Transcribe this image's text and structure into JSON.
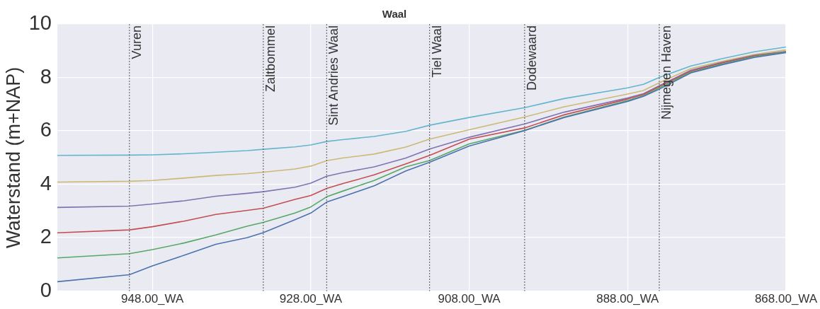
{
  "chart_data": {
    "type": "line",
    "title": "Waal",
    "ylabel": "Waterstand (m+NAP)",
    "x": [
      960,
      950.9,
      948,
      944,
      940,
      936,
      934,
      930,
      928,
      926,
      924,
      920,
      916,
      913,
      908,
      901,
      896,
      888,
      886,
      884,
      880,
      876,
      872,
      868
    ],
    "xlim": [
      960,
      868
    ],
    "xticks": [
      {
        "value": 948,
        "label": "948.00_WA"
      },
      {
        "value": 928,
        "label": "928.00_WA"
      },
      {
        "value": 908,
        "label": "908.00_WA"
      },
      {
        "value": 888,
        "label": "888.00_WA"
      },
      {
        "value": 868,
        "label": "868.00_WA"
      }
    ],
    "ylim": [
      0,
      10
    ],
    "yticks": [
      0,
      2,
      4,
      6,
      8,
      10
    ],
    "grid": true,
    "legend": false,
    "marker": "none",
    "line_style": "solid",
    "series": [
      {
        "color": "#4c72b0",
        "values": [
          0.35,
          0.61,
          0.94,
          1.34,
          1.75,
          2.0,
          2.19,
          2.67,
          2.92,
          3.33,
          3.53,
          3.94,
          4.5,
          4.82,
          5.43,
          6.01,
          6.5,
          7.1,
          7.29,
          7.56,
          8.17,
          8.48,
          8.75,
          8.93
        ]
      },
      {
        "color": "#55a868",
        "values": [
          1.24,
          1.4,
          1.55,
          1.8,
          2.1,
          2.43,
          2.57,
          2.92,
          3.15,
          3.53,
          3.74,
          4.14,
          4.65,
          4.89,
          5.51,
          6.02,
          6.52,
          7.13,
          7.31,
          7.61,
          8.2,
          8.51,
          8.78,
          8.95
        ]
      },
      {
        "color": "#c44e52",
        "values": [
          2.18,
          2.29,
          2.41,
          2.62,
          2.87,
          3.02,
          3.1,
          3.43,
          3.58,
          3.84,
          4.02,
          4.35,
          4.76,
          5.08,
          5.69,
          6.11,
          6.6,
          7.19,
          7.36,
          7.66,
          8.24,
          8.55,
          8.81,
          8.96
        ]
      },
      {
        "color": "#8172b2",
        "values": [
          3.13,
          3.18,
          3.26,
          3.38,
          3.55,
          3.66,
          3.72,
          3.89,
          4.04,
          4.3,
          4.43,
          4.65,
          4.98,
          5.32,
          5.76,
          6.26,
          6.7,
          7.23,
          7.39,
          7.69,
          8.27,
          8.57,
          8.83,
          8.97
        ]
      },
      {
        "color": "#ccb974",
        "values": [
          4.08,
          4.11,
          4.14,
          4.23,
          4.33,
          4.4,
          4.45,
          4.57,
          4.68,
          4.88,
          4.98,
          5.13,
          5.39,
          5.69,
          6.04,
          6.52,
          6.9,
          7.38,
          7.51,
          7.8,
          8.33,
          8.61,
          8.86,
          9.03
        ]
      },
      {
        "color": "#64b5cd",
        "values": [
          5.08,
          5.09,
          5.1,
          5.14,
          5.2,
          5.26,
          5.31,
          5.4,
          5.47,
          5.6,
          5.67,
          5.79,
          5.98,
          6.21,
          6.5,
          6.87,
          7.21,
          7.61,
          7.74,
          8.0,
          8.43,
          8.71,
          8.96,
          9.14
        ]
      }
    ],
    "ref_lines": [
      {
        "axis": "x",
        "value": 950.9,
        "label": "Vuren",
        "color": "#555555",
        "line_style": "dotted"
      },
      {
        "axis": "x",
        "value": 934,
        "label": "Zaltbommel",
        "color": "#555555",
        "line_style": "dotted"
      },
      {
        "axis": "x",
        "value": 926,
        "label": "Sint Andries Waal",
        "color": "#555555",
        "line_style": "dotted"
      },
      {
        "axis": "x",
        "value": 913,
        "label": "Tiel Waal",
        "color": "#555555",
        "line_style": "dotted"
      },
      {
        "axis": "x",
        "value": 901,
        "label": "Dodewaard",
        "color": "#555555",
        "line_style": "dotted"
      },
      {
        "axis": "x",
        "value": 884,
        "label": "Nijmegen Haven",
        "color": "#555555",
        "line_style": "dotted"
      }
    ]
  }
}
